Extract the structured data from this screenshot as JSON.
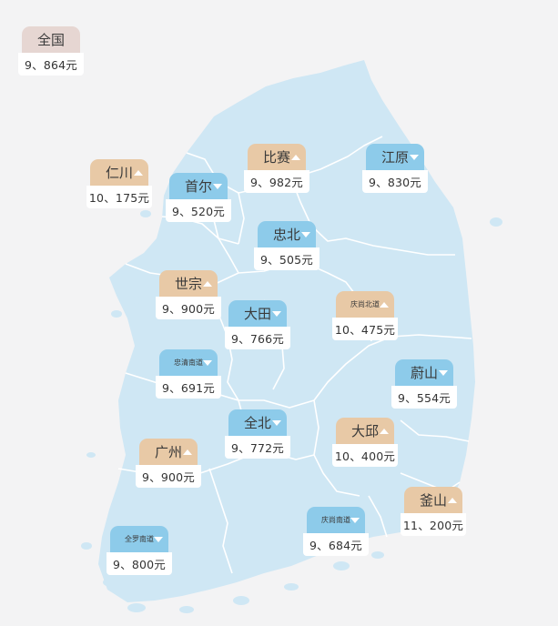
{
  "map": {
    "land_color": "#cfe7f4",
    "border_color": "#ffffff",
    "up_color": "#e8c9a6",
    "down_color": "#8dcbea"
  },
  "national": {
    "name": "全国",
    "price": "9、864元"
  },
  "regions": [
    {
      "key": "incheon",
      "name": "仁川",
      "price": "10、175元",
      "trend": "up"
    },
    {
      "key": "seoul",
      "name": "首尔",
      "price": "9、520元",
      "trend": "down"
    },
    {
      "key": "gyeonggi",
      "name": "比赛",
      "price": "9、982元",
      "trend": "up"
    },
    {
      "key": "gangwon",
      "name": "江原",
      "price": "9、830元",
      "trend": "down"
    },
    {
      "key": "chungbuk",
      "name": "忠北",
      "price": "9、505元",
      "trend": "down"
    },
    {
      "key": "sejong",
      "name": "世宗",
      "price": "9、900元",
      "trend": "up"
    },
    {
      "key": "daejeon",
      "name": "大田",
      "price": "9、766元",
      "trend": "down"
    },
    {
      "key": "gyeongbuk",
      "name": "庆尚北道",
      "price": "10、475元",
      "trend": "up"
    },
    {
      "key": "chungnam",
      "name": "忠清南道",
      "price": "9、691元",
      "trend": "down"
    },
    {
      "key": "ulsan",
      "name": "蔚山",
      "price": "9、554元",
      "trend": "down"
    },
    {
      "key": "jeonbuk",
      "name": "全北",
      "price": "9、772元",
      "trend": "down"
    },
    {
      "key": "daegu",
      "name": "大邱",
      "price": "10、400元",
      "trend": "up"
    },
    {
      "key": "gwangju",
      "name": "广州",
      "price": "9、900元",
      "trend": "up"
    },
    {
      "key": "busan",
      "name": "釜山",
      "price": "11、200元",
      "trend": "up"
    },
    {
      "key": "gyeongnam",
      "name": "庆尚南道",
      "price": "9、684元",
      "trend": "down"
    },
    {
      "key": "jeonnam",
      "name": "全罗南道",
      "price": "9、800元",
      "trend": "down"
    }
  ]
}
